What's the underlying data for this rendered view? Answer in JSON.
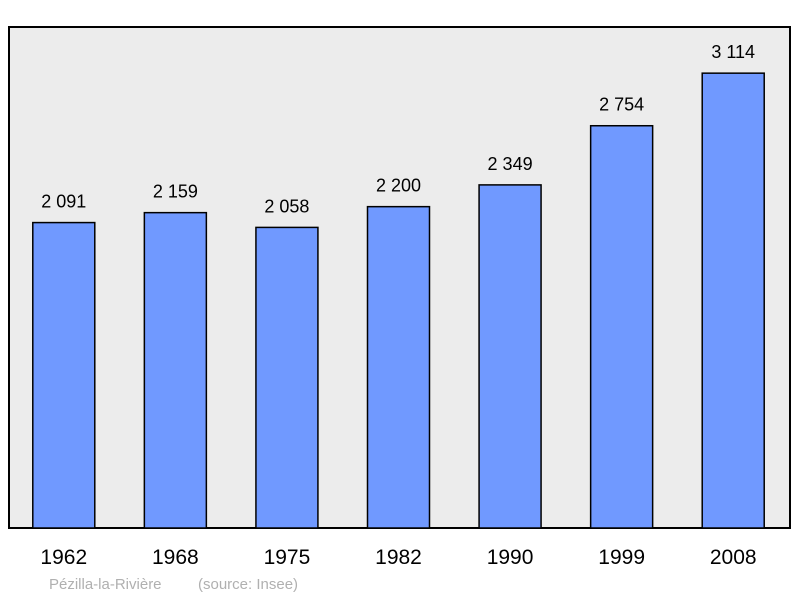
{
  "chart_data": {
    "type": "bar",
    "categories": [
      "1962",
      "1968",
      "1975",
      "1982",
      "1990",
      "1999",
      "2008"
    ],
    "values": [
      2091,
      2159,
      2058,
      2200,
      2349,
      2754,
      3114
    ],
    "value_labels": [
      "2 091",
      "2 159",
      "2 058",
      "2 200",
      "2 349",
      "2 754",
      "3 114"
    ],
    "title": "",
    "xlabel": "",
    "ylabel": "",
    "ylim": [
      0,
      3430
    ],
    "grid": false,
    "bar_color": "#7099ff",
    "plot_background": "#ececec"
  },
  "footer": {
    "place": "Pézilla-la-Rivière",
    "source": "(source: Insee)"
  }
}
